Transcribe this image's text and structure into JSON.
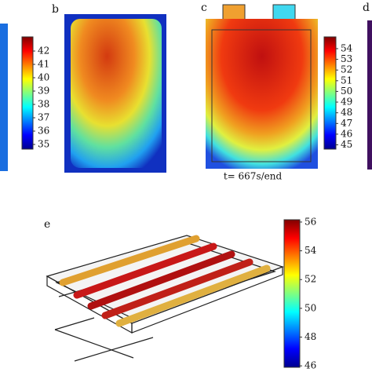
{
  "panels": [
    {
      "label": "b"
    },
    {
      "label": "c",
      "caption": "t= 667s/end"
    },
    {
      "label": "d"
    },
    {
      "label": "e"
    }
  ],
  "colorbars": [
    {
      "lim": [
        34.65,
        43.06
      ],
      "ticks": [
        35,
        36,
        37,
        38,
        39,
        40,
        41,
        42
      ]
    },
    {
      "lim": [
        44.6,
        55.1
      ],
      "ticks": [
        45,
        46,
        47,
        48,
        49,
        50,
        51,
        52,
        53,
        54
      ]
    },
    {
      "lim": [
        45.9,
        56.16
      ],
      "ticks": [
        46,
        48,
        50,
        52,
        54,
        56
      ]
    }
  ]
}
